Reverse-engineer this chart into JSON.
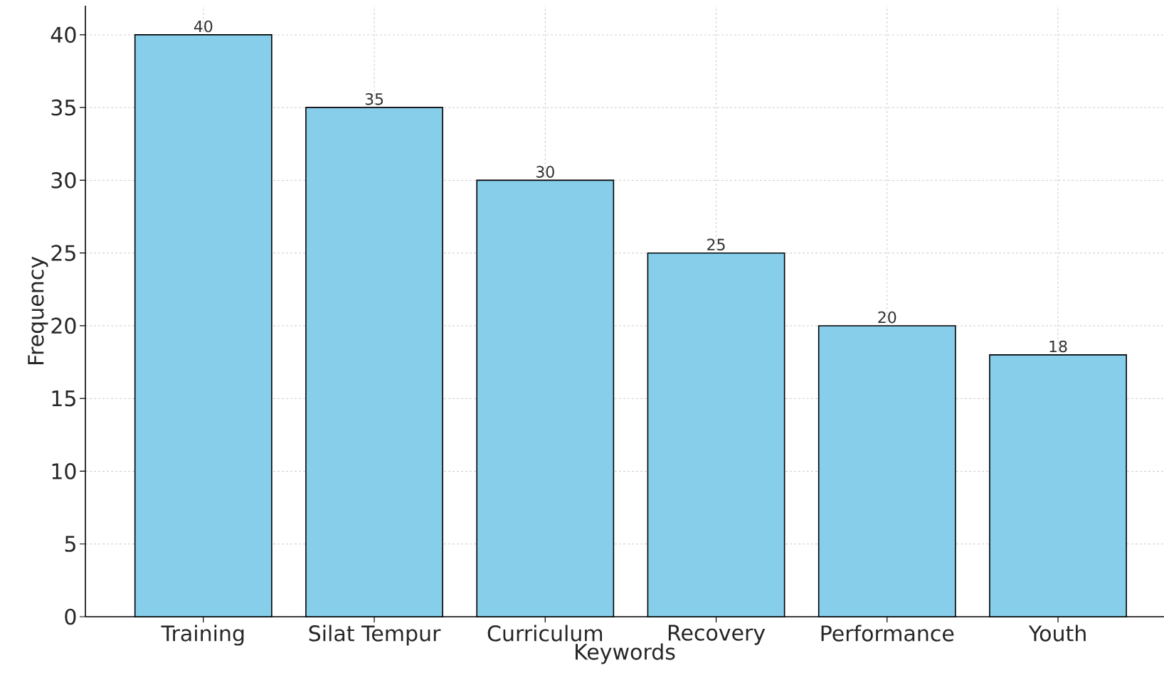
{
  "chart_data": {
    "type": "bar",
    "xlabel": "Keywords",
    "ylabel": "Frequency",
    "categories": [
      "Training",
      "Silat Tempur",
      "Curriculum",
      "Recovery",
      "Performance",
      "Youth"
    ],
    "values": [
      40,
      35,
      30,
      25,
      20,
      18
    ],
    "color": "#87ceeb",
    "ylim": [
      0,
      42
    ],
    "yticks": [
      0,
      5,
      10,
      15,
      20,
      25,
      30,
      35,
      40
    ],
    "grid": true,
    "data_labels": true
  }
}
